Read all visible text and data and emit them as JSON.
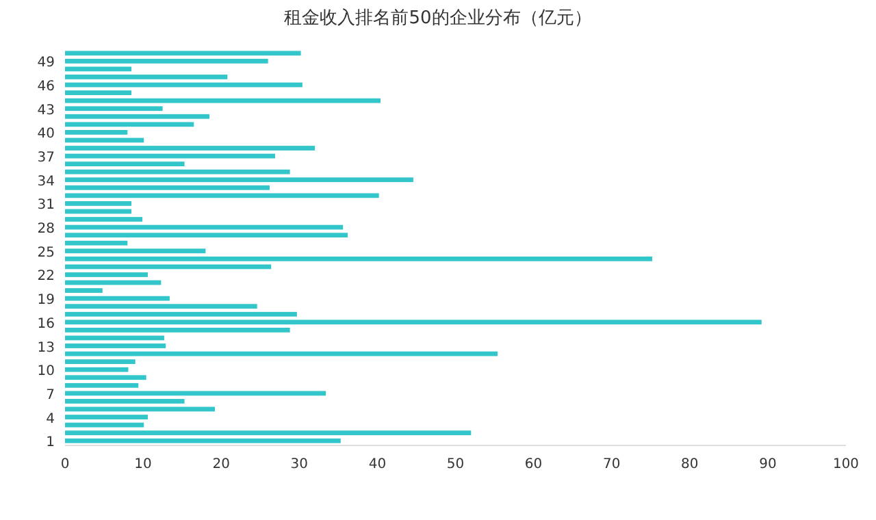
{
  "chart_data": {
    "type": "bar",
    "orientation": "horizontal",
    "title": "租金收入排名前50的企业分布（亿元）",
    "categories": [
      null,
      "49",
      null,
      null,
      "46",
      null,
      null,
      "43",
      null,
      null,
      "40",
      null,
      null,
      "37",
      null,
      null,
      "34",
      null,
      null,
      "31",
      null,
      null,
      "28",
      null,
      null,
      "25",
      null,
      null,
      "22",
      null,
      null,
      "19",
      null,
      null,
      "16",
      null,
      null,
      "13",
      null,
      null,
      "10",
      null,
      null,
      "7",
      null,
      null,
      "4",
      null,
      null,
      "1"
    ],
    "values": [
      30.2,
      26.0,
      8.5,
      20.8,
      30.4,
      8.5,
      40.4,
      12.5,
      18.5,
      16.5,
      8.0,
      10.1,
      32.0,
      26.9,
      15.3,
      28.8,
      44.6,
      26.2,
      40.2,
      8.5,
      8.5,
      9.9,
      35.6,
      36.2,
      8.0,
      18.0,
      75.2,
      26.4,
      10.6,
      12.3,
      4.8,
      13.4,
      24.6,
      29.7,
      89.2,
      28.8,
      12.7,
      12.9,
      55.4,
      9.0,
      8.1,
      10.4,
      9.4,
      33.4,
      15.3,
      19.2,
      10.6,
      10.1,
      52.0,
      35.3
    ],
    "color": "#32c5c9",
    "xlim": [
      0,
      100
    ],
    "xticks": [
      0,
      10,
      20,
      30,
      40,
      50,
      60,
      70,
      80,
      90,
      100
    ]
  }
}
